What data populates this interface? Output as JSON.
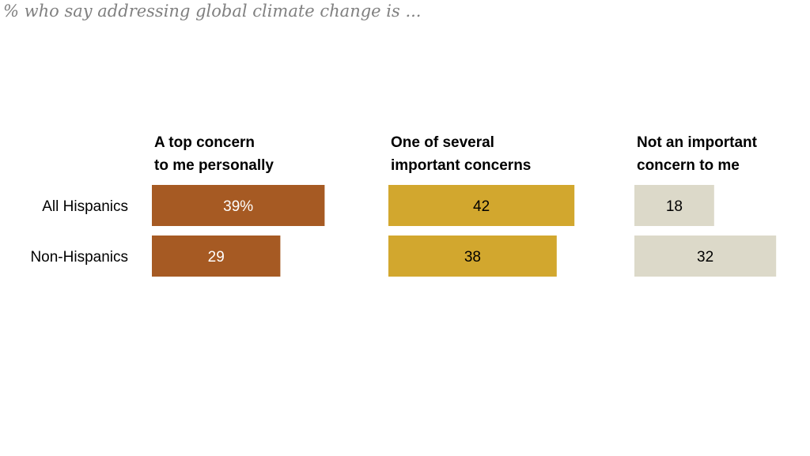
{
  "subtitle": "% who say addressing global climate change is ...",
  "chart_data": {
    "type": "bar",
    "orientation": "horizontal",
    "layout": "small-multiples",
    "categories": [
      "All Hispanics",
      "Non-Hispanics"
    ],
    "series": [
      {
        "name": "A top concern to me personally",
        "header_lines": [
          "A top concern",
          "to me personally"
        ],
        "values": [
          39,
          29
        ],
        "labels": [
          "39%",
          "29"
        ],
        "color": "#a65a23",
        "label_color": "#ffffff"
      },
      {
        "name": "One of several important concerns",
        "header_lines": [
          "One of several",
          "important concerns"
        ],
        "values": [
          42,
          38
        ],
        "labels": [
          "42",
          "38"
        ],
        "color": "#d2a72e",
        "label_color": "#000000"
      },
      {
        "name": "Not an important concern to me",
        "header_lines": [
          "Not an important",
          "concern to me"
        ],
        "values": [
          18,
          32
        ],
        "labels": [
          "18",
          "32"
        ],
        "color": "#dcd9c9",
        "label_color": "#000000"
      }
    ],
    "unit": "%",
    "grid": false,
    "legend": "none"
  }
}
